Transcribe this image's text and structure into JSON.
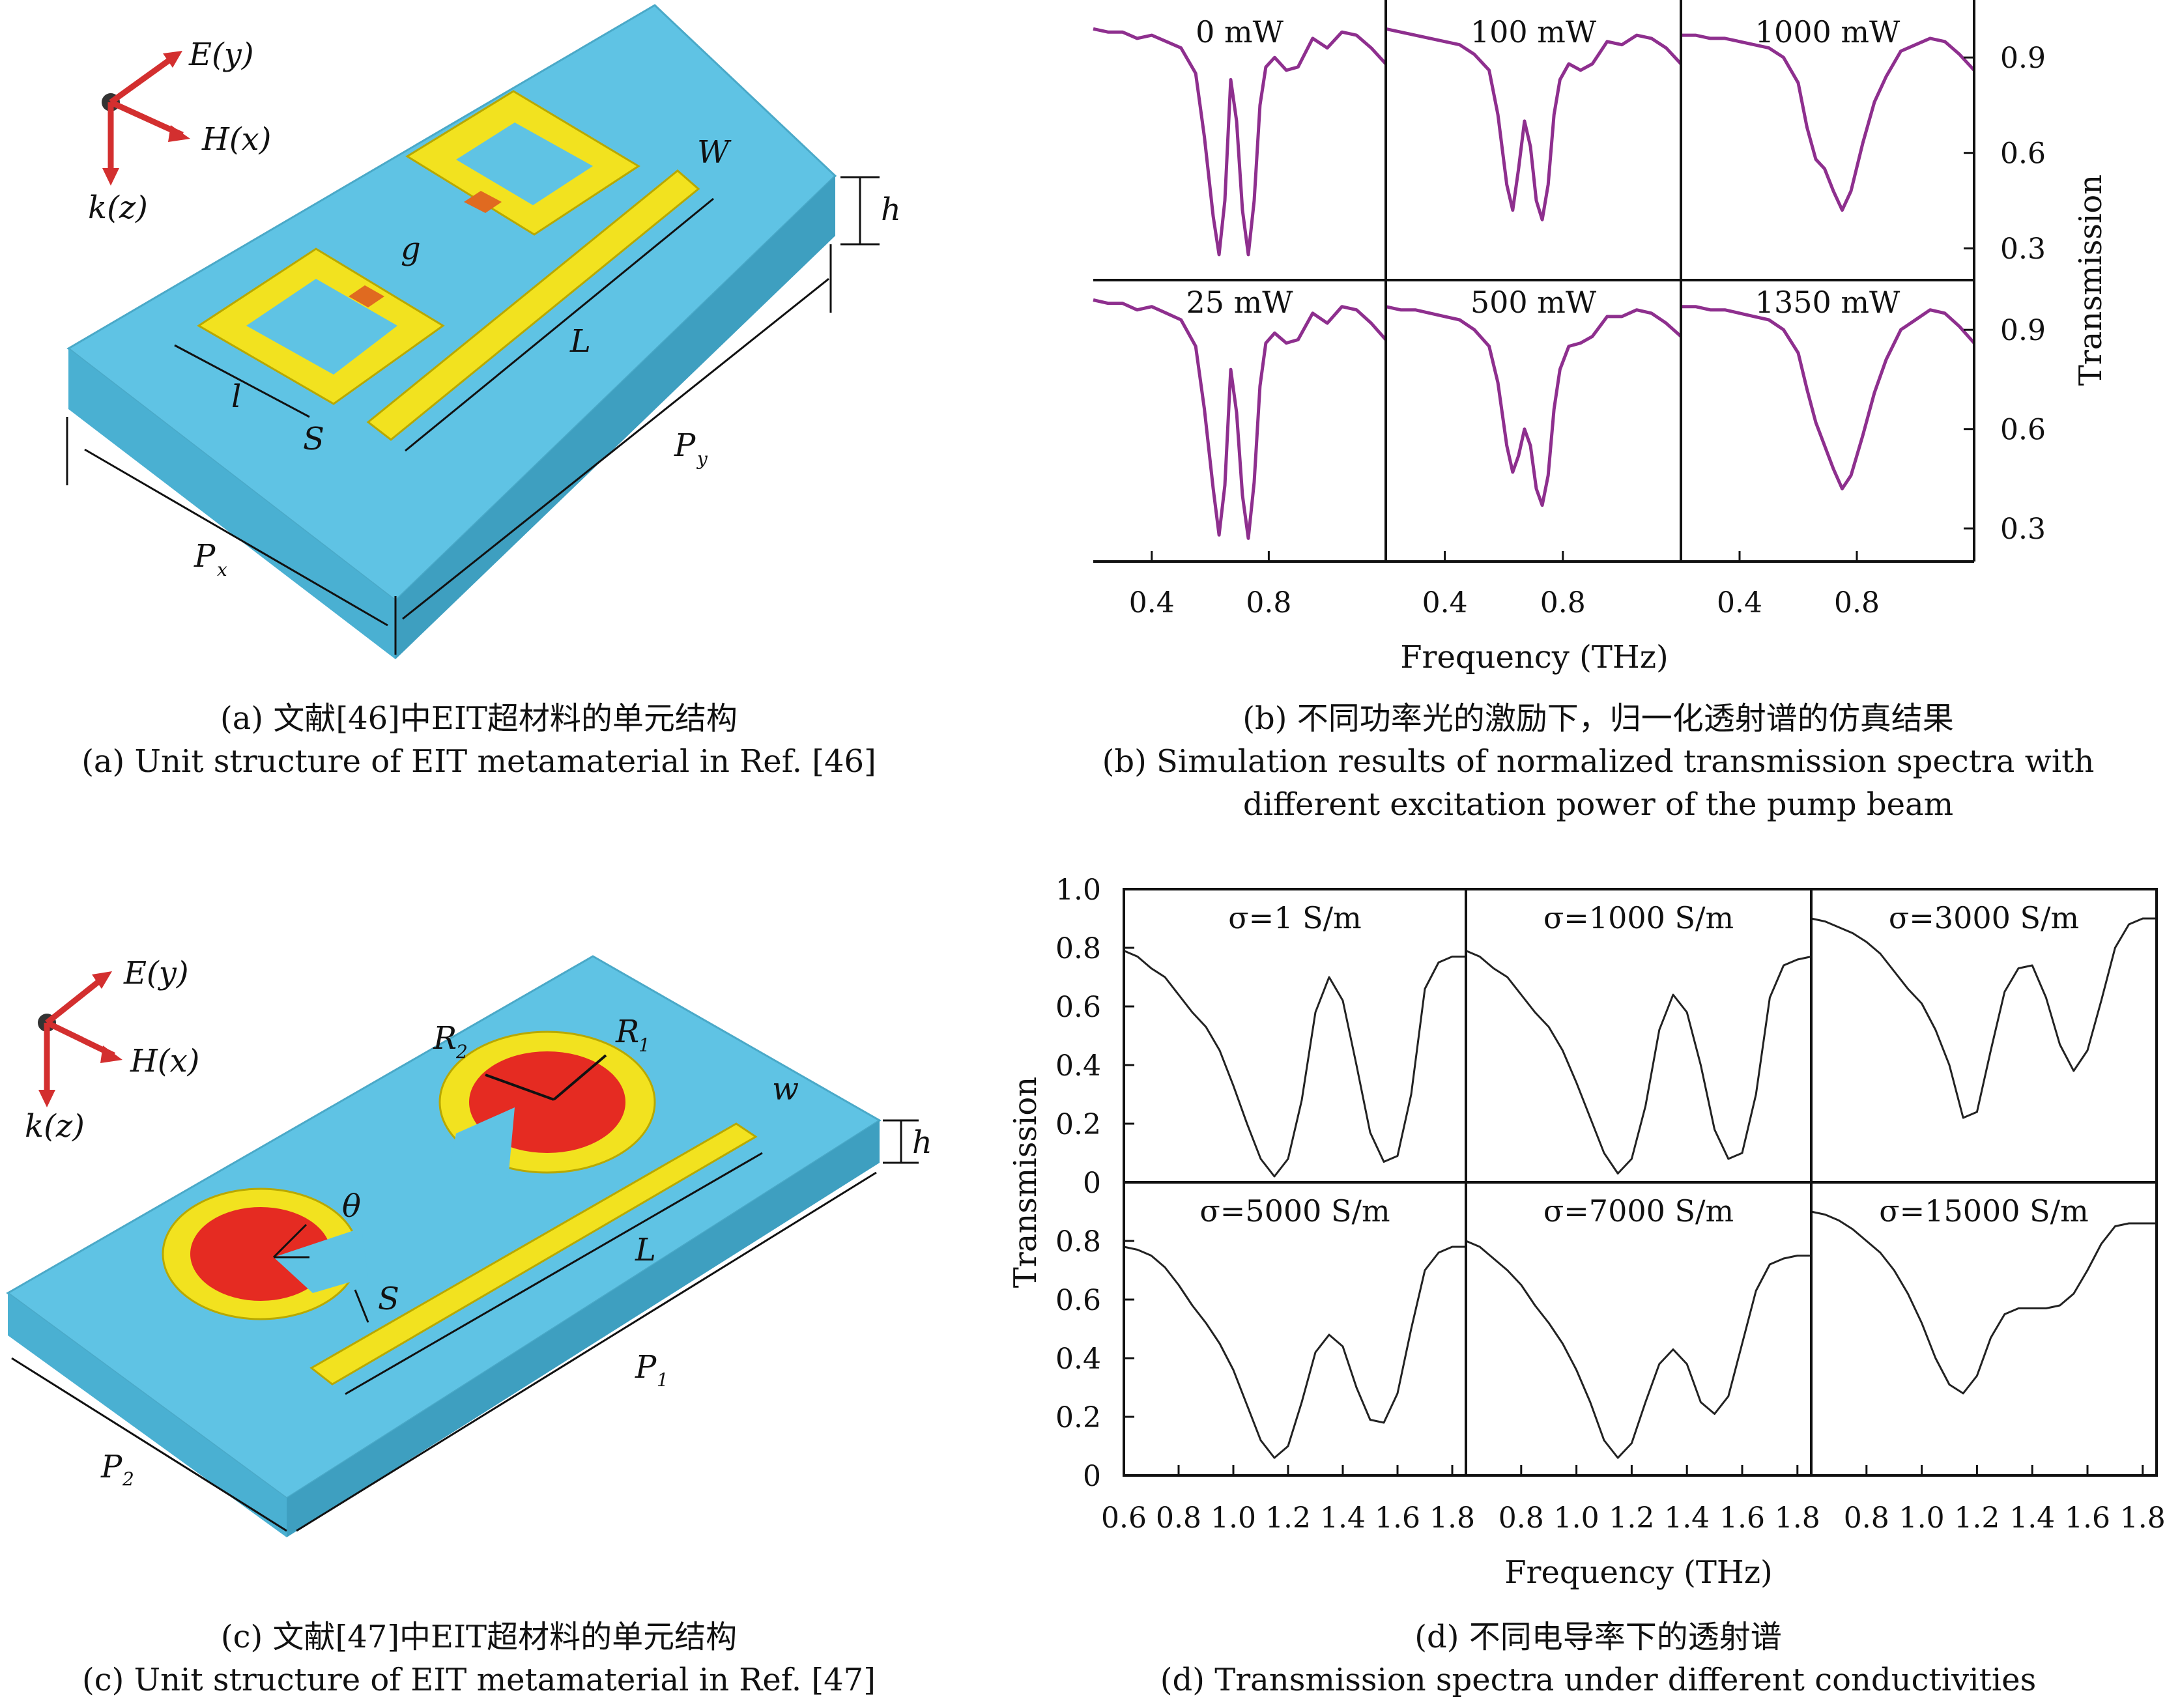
{
  "figure_a": {
    "axes": {
      "e": "E(y)",
      "h": "H(x)",
      "k": "k(z)"
    },
    "dims": {
      "W": "W",
      "h": "h",
      "g": "g",
      "L": "L",
      "l": "l",
      "S": "S",
      "Py": "P",
      "Py_sub": "y",
      "Px": "P",
      "Px_sub": "x"
    },
    "caption_cn": "(a) 文献[46]中EIT超材料的单元结构",
    "caption_en": "(a) Unit structure of EIT metamaterial in Ref. [46]"
  },
  "figure_b": {
    "caption_cn": "(b) 不同功率光的激励下，归一化透射谱的仿真结果",
    "caption_en_1": "(b) Simulation results of normalized transmission spectra with",
    "caption_en_2": "different excitation power of the pump beam"
  },
  "figure_c": {
    "axes": {
      "e": "E(y)",
      "h": "H(x)",
      "k": "k(z)"
    },
    "dims": {
      "R2": "R",
      "R2_sub": "2",
      "R1": "R",
      "R1_sub": "1",
      "w": "w",
      "h": "h",
      "theta": "θ",
      "S": "S",
      "L": "L",
      "P1": "P",
      "P1_sub": "1",
      "P2": "P",
      "P2_sub": "2"
    },
    "caption_cn": "(c) 文献[47]中EIT超材料的单元结构",
    "caption_en": "(c) Unit structure of EIT metamaterial in Ref. [47]"
  },
  "figure_d": {
    "caption_cn": "(d) 不同电导率下的透射谱",
    "caption_en": "(d) Transmission spectra under different conductivities"
  },
  "chart_data": [
    {
      "type": "line",
      "panel": "b",
      "line_color": "#8e2f8e",
      "xlabel": "Frequency (THz)",
      "ylabel": "Transmission",
      "xticks": [
        "0.4",
        "0.8"
      ],
      "yticks": [
        "0.3",
        "0.6",
        "0.9"
      ],
      "xlim": [
        0.2,
        1.2
      ],
      "ylim": [
        0.2,
        1.05
      ],
      "panels": [
        {
          "label": "0 mW",
          "x": [
            0.2,
            0.25,
            0.3,
            0.35,
            0.4,
            0.45,
            0.5,
            0.55,
            0.58,
            0.61,
            0.63,
            0.65,
            0.67,
            0.69,
            0.71,
            0.73,
            0.75,
            0.77,
            0.79,
            0.82,
            0.86,
            0.9,
            0.95,
            1.0,
            1.05,
            1.1,
            1.15,
            1.2
          ],
          "y": [
            0.99,
            0.98,
            0.98,
            0.96,
            0.97,
            0.95,
            0.93,
            0.85,
            0.65,
            0.4,
            0.28,
            0.45,
            0.83,
            0.7,
            0.42,
            0.28,
            0.45,
            0.75,
            0.87,
            0.9,
            0.86,
            0.87,
            0.96,
            0.93,
            0.98,
            0.97,
            0.93,
            0.88
          ]
        },
        {
          "label": "25 mW",
          "x": [
            0.2,
            0.25,
            0.3,
            0.35,
            0.4,
            0.45,
            0.5,
            0.55,
            0.58,
            0.61,
            0.63,
            0.65,
            0.67,
            0.69,
            0.71,
            0.73,
            0.75,
            0.77,
            0.79,
            0.82,
            0.86,
            0.9,
            0.95,
            1.0,
            1.05,
            1.1,
            1.15,
            1.2
          ],
          "y": [
            0.99,
            0.98,
            0.98,
            0.96,
            0.97,
            0.95,
            0.93,
            0.85,
            0.66,
            0.42,
            0.28,
            0.43,
            0.78,
            0.65,
            0.4,
            0.27,
            0.44,
            0.73,
            0.86,
            0.89,
            0.86,
            0.87,
            0.95,
            0.92,
            0.97,
            0.96,
            0.92,
            0.87
          ]
        },
        {
          "label": "100 mW",
          "x": [
            0.2,
            0.25,
            0.3,
            0.35,
            0.4,
            0.45,
            0.5,
            0.55,
            0.58,
            0.61,
            0.63,
            0.65,
            0.67,
            0.69,
            0.71,
            0.73,
            0.75,
            0.77,
            0.79,
            0.82,
            0.86,
            0.9,
            0.95,
            1.0,
            1.05,
            1.1,
            1.15,
            1.2
          ],
          "y": [
            0.99,
            0.98,
            0.97,
            0.96,
            0.95,
            0.94,
            0.91,
            0.86,
            0.72,
            0.5,
            0.42,
            0.55,
            0.7,
            0.62,
            0.45,
            0.39,
            0.5,
            0.72,
            0.83,
            0.88,
            0.86,
            0.88,
            0.95,
            0.94,
            0.97,
            0.96,
            0.93,
            0.88
          ]
        },
        {
          "label": "500 mW",
          "x": [
            0.2,
            0.25,
            0.3,
            0.35,
            0.4,
            0.45,
            0.5,
            0.55,
            0.58,
            0.61,
            0.63,
            0.65,
            0.67,
            0.69,
            0.71,
            0.73,
            0.75,
            0.77,
            0.79,
            0.82,
            0.86,
            0.9,
            0.95,
            1.0,
            1.05,
            1.1,
            1.15,
            1.2
          ],
          "y": [
            0.97,
            0.96,
            0.96,
            0.95,
            0.94,
            0.93,
            0.9,
            0.85,
            0.74,
            0.55,
            0.47,
            0.52,
            0.6,
            0.55,
            0.42,
            0.37,
            0.46,
            0.66,
            0.78,
            0.85,
            0.86,
            0.88,
            0.94,
            0.94,
            0.96,
            0.95,
            0.92,
            0.88
          ]
        },
        {
          "label": "1000 mW",
          "x": [
            0.2,
            0.25,
            0.3,
            0.35,
            0.4,
            0.45,
            0.5,
            0.55,
            0.6,
            0.63,
            0.66,
            0.69,
            0.72,
            0.75,
            0.78,
            0.82,
            0.86,
            0.9,
            0.95,
            1.0,
            1.05,
            1.1,
            1.15,
            1.2
          ],
          "y": [
            0.97,
            0.97,
            0.96,
            0.96,
            0.95,
            0.94,
            0.93,
            0.9,
            0.82,
            0.68,
            0.58,
            0.55,
            0.48,
            0.42,
            0.48,
            0.63,
            0.76,
            0.84,
            0.92,
            0.94,
            0.96,
            0.95,
            0.91,
            0.86
          ]
        },
        {
          "label": "1350 mW",
          "x": [
            0.2,
            0.25,
            0.3,
            0.35,
            0.4,
            0.45,
            0.5,
            0.55,
            0.6,
            0.63,
            0.66,
            0.69,
            0.72,
            0.75,
            0.78,
            0.82,
            0.86,
            0.9,
            0.95,
            1.0,
            1.05,
            1.1,
            1.15,
            1.2
          ],
          "y": [
            0.97,
            0.97,
            0.96,
            0.96,
            0.95,
            0.94,
            0.93,
            0.9,
            0.83,
            0.72,
            0.62,
            0.55,
            0.48,
            0.42,
            0.46,
            0.58,
            0.71,
            0.81,
            0.9,
            0.93,
            0.96,
            0.95,
            0.91,
            0.86
          ]
        }
      ]
    },
    {
      "type": "line",
      "panel": "d",
      "line_color": "#222222",
      "xlabel": "Frequency (THz)",
      "ylabel": "Transmission",
      "xticks_first": [
        "0.6",
        "0.8",
        "1.0",
        "1.2",
        "1.4",
        "1.6",
        "1.8"
      ],
      "xticks_rest": [
        "0.8",
        "1.0",
        "1.2",
        "1.4",
        "1.6",
        "1.8"
      ],
      "yticks": [
        "0",
        "0.2",
        "0.4",
        "0.6",
        "0.8",
        "1.0"
      ],
      "xlim": [
        0.6,
        1.85
      ],
      "ylim": [
        0,
        1.0
      ],
      "panels": [
        {
          "label": "σ=1 S/m",
          "x": [
            0.6,
            0.65,
            0.7,
            0.75,
            0.8,
            0.85,
            0.9,
            0.95,
            1.0,
            1.05,
            1.1,
            1.15,
            1.2,
            1.25,
            1.3,
            1.35,
            1.4,
            1.45,
            1.5,
            1.55,
            1.6,
            1.65,
            1.7,
            1.75,
            1.8,
            1.85
          ],
          "y": [
            0.79,
            0.77,
            0.73,
            0.7,
            0.64,
            0.58,
            0.53,
            0.45,
            0.33,
            0.2,
            0.08,
            0.02,
            0.08,
            0.28,
            0.58,
            0.7,
            0.62,
            0.4,
            0.17,
            0.07,
            0.09,
            0.3,
            0.66,
            0.75,
            0.77,
            0.77
          ]
        },
        {
          "label": "σ=1000 S/m",
          "x": [
            0.6,
            0.65,
            0.7,
            0.75,
            0.8,
            0.85,
            0.9,
            0.95,
            1.0,
            1.05,
            1.1,
            1.15,
            1.2,
            1.25,
            1.3,
            1.35,
            1.4,
            1.45,
            1.5,
            1.55,
            1.6,
            1.65,
            1.7,
            1.75,
            1.8,
            1.85
          ],
          "y": [
            0.79,
            0.77,
            0.73,
            0.7,
            0.64,
            0.58,
            0.53,
            0.45,
            0.34,
            0.22,
            0.1,
            0.03,
            0.08,
            0.26,
            0.52,
            0.64,
            0.58,
            0.4,
            0.18,
            0.08,
            0.1,
            0.3,
            0.63,
            0.74,
            0.76,
            0.77
          ]
        },
        {
          "label": "σ=3000 S/m",
          "x": [
            0.6,
            0.65,
            0.7,
            0.75,
            0.8,
            0.85,
            0.9,
            0.95,
            1.0,
            1.05,
            1.1,
            1.15,
            1.2,
            1.25,
            1.3,
            1.35,
            1.4,
            1.45,
            1.5,
            1.55,
            1.6,
            1.65,
            1.7,
            1.75,
            1.8,
            1.85
          ],
          "y": [
            0.9,
            0.89,
            0.87,
            0.85,
            0.82,
            0.78,
            0.72,
            0.66,
            0.61,
            0.52,
            0.4,
            0.22,
            0.24,
            0.45,
            0.65,
            0.73,
            0.74,
            0.63,
            0.47,
            0.38,
            0.45,
            0.62,
            0.8,
            0.88,
            0.9,
            0.9
          ]
        },
        {
          "label": "σ=5000 S/m",
          "x": [
            0.6,
            0.65,
            0.7,
            0.75,
            0.8,
            0.85,
            0.9,
            0.95,
            1.0,
            1.05,
            1.1,
            1.15,
            1.2,
            1.25,
            1.3,
            1.35,
            1.4,
            1.45,
            1.5,
            1.55,
            1.6,
            1.65,
            1.7,
            1.75,
            1.8,
            1.85
          ],
          "y": [
            0.78,
            0.77,
            0.75,
            0.71,
            0.65,
            0.58,
            0.52,
            0.45,
            0.36,
            0.24,
            0.12,
            0.06,
            0.1,
            0.25,
            0.42,
            0.48,
            0.44,
            0.3,
            0.19,
            0.18,
            0.28,
            0.5,
            0.7,
            0.76,
            0.78,
            0.78
          ]
        },
        {
          "label": "σ=7000 S/m",
          "x": [
            0.6,
            0.65,
            0.7,
            0.75,
            0.8,
            0.85,
            0.9,
            0.95,
            1.0,
            1.05,
            1.1,
            1.15,
            1.2,
            1.25,
            1.3,
            1.35,
            1.4,
            1.45,
            1.5,
            1.55,
            1.6,
            1.65,
            1.7,
            1.75,
            1.8,
            1.85
          ],
          "y": [
            0.8,
            0.78,
            0.74,
            0.7,
            0.65,
            0.58,
            0.52,
            0.45,
            0.36,
            0.25,
            0.12,
            0.06,
            0.11,
            0.25,
            0.38,
            0.43,
            0.38,
            0.25,
            0.21,
            0.27,
            0.45,
            0.63,
            0.72,
            0.74,
            0.75,
            0.75
          ]
        },
        {
          "label": "σ=15000 S/m",
          "x": [
            0.6,
            0.65,
            0.7,
            0.75,
            0.8,
            0.85,
            0.9,
            0.95,
            1.0,
            1.05,
            1.1,
            1.15,
            1.2,
            1.25,
            1.3,
            1.35,
            1.4,
            1.45,
            1.5,
            1.55,
            1.6,
            1.65,
            1.7,
            1.75,
            1.8,
            1.85
          ],
          "y": [
            0.9,
            0.89,
            0.87,
            0.84,
            0.8,
            0.76,
            0.7,
            0.62,
            0.52,
            0.4,
            0.31,
            0.28,
            0.34,
            0.47,
            0.55,
            0.57,
            0.57,
            0.57,
            0.58,
            0.62,
            0.7,
            0.79,
            0.85,
            0.86,
            0.86,
            0.86
          ]
        }
      ]
    }
  ]
}
